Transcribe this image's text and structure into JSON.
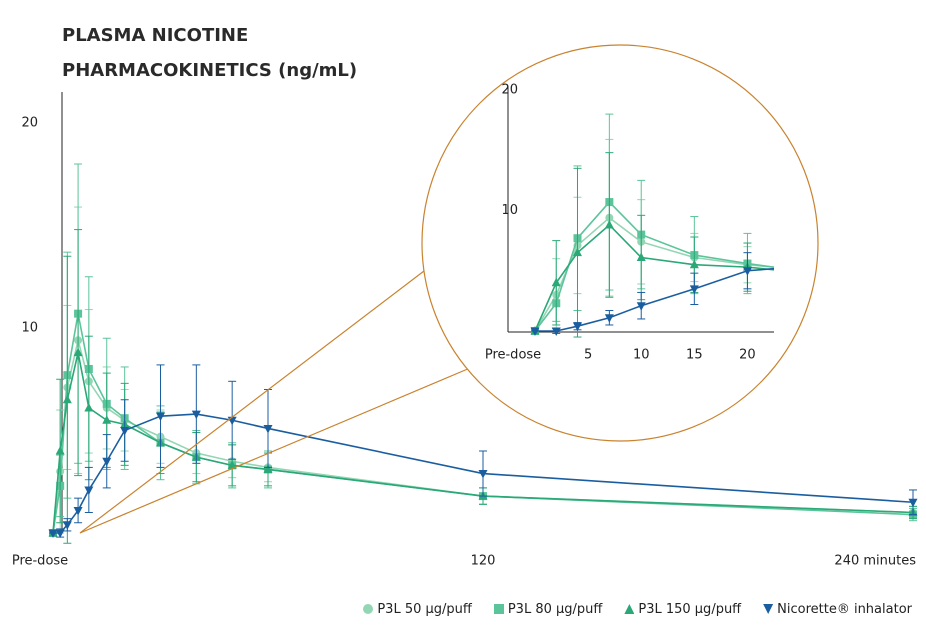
{
  "chart_data": {
    "type": "line",
    "title": "PLASMA NICOTINE PHARMACOKINETICS (ng/mL)",
    "x": [
      0,
      2,
      4,
      7,
      10,
      15,
      20,
      30,
      40,
      50,
      60,
      120,
      240
    ],
    "xlim": [
      0,
      240
    ],
    "xticks": [
      {
        "value": 0,
        "label": "Pre-dose"
      },
      120,
      {
        "value": 240,
        "label": "240 minutes"
      }
    ],
    "ylim": [
      0,
      20
    ],
    "yticks": [
      10,
      20
    ],
    "grid": false,
    "legend": "bottom-right",
    "series": [
      {
        "name": "P3L 50 µg/puff",
        "color": "#93d6b3",
        "marker": "circle",
        "values": [
          0,
          3.0,
          7.1,
          9.4,
          7.4,
          6.1,
          5.5,
          4.7,
          3.9,
          3.5,
          3.2,
          1.8,
          1.0
        ],
        "errors": [
          0,
          3,
          4,
          6.5,
          3.5,
          2,
          1.5,
          1.3,
          1,
          0.8,
          0.7,
          0.4,
          0.3
        ]
      },
      {
        "name": "P3L 80 µg/puff",
        "color": "#5cc49a",
        "marker": "square",
        "values": [
          0,
          2.3,
          7.7,
          10.7,
          8.0,
          6.3,
          5.6,
          4.4,
          3.7,
          3.3,
          3.1,
          1.8,
          0.9
        ],
        "errors": [
          0,
          1.5,
          6,
          7.3,
          4.5,
          3.2,
          2.5,
          1.8,
          1.3,
          1.1,
          0.9,
          0.4,
          0.3
        ]
      },
      {
        "name": "P3L 150 µg/puff",
        "color": "#2aa877",
        "marker": "triangle-up",
        "values": [
          0,
          4.0,
          6.5,
          8.8,
          6.1,
          5.5,
          5.3,
          4.4,
          3.7,
          3.3,
          3.1,
          1.8,
          1.0
        ],
        "errors": [
          0,
          3.5,
          7,
          6,
          3.5,
          2.3,
          2,
          1.5,
          1.2,
          1,
          0.8,
          0.4,
          0.3
        ]
      },
      {
        "name": "Nicorette® inhalator",
        "color": "#1b5ea0",
        "marker": "triangle-down",
        "values": [
          0,
          0,
          0.4,
          1.1,
          2.1,
          3.5,
          5.0,
          5.7,
          5.8,
          5.5,
          5.1,
          2.9,
          1.5
        ],
        "errors": [
          0,
          0.2,
          0.3,
          0.6,
          1.1,
          1.3,
          1.5,
          2.5,
          2.4,
          1.9,
          1.9,
          1.1,
          0.6
        ]
      }
    ],
    "inset": {
      "xlim": [
        0,
        22.5
      ],
      "xticks": [
        {
          "value": 0,
          "label": "Pre-dose"
        },
        5,
        10,
        15,
        20
      ],
      "ylim": [
        0,
        20
      ],
      "yticks": [
        10,
        20
      ],
      "border_color": "#c9832f"
    }
  }
}
